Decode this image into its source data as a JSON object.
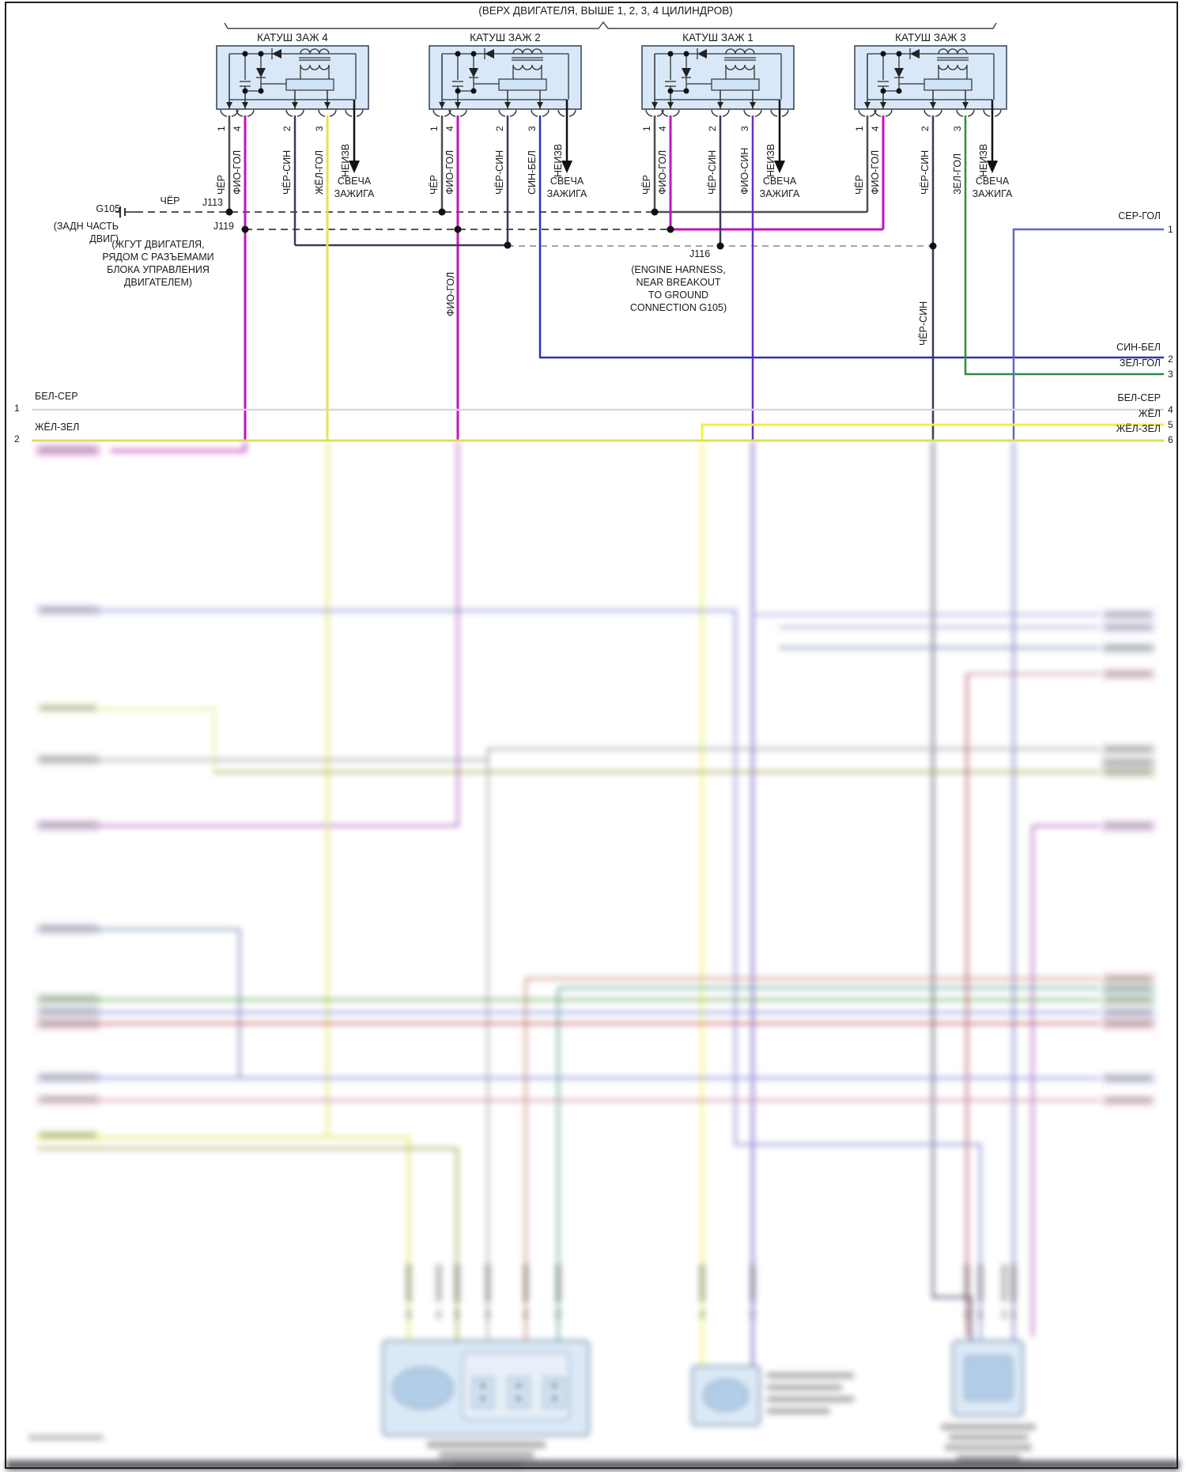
{
  "header": {
    "note": "(ВЕРХ ДВИГАТЕЛЯ, ВЫШЕ 1, 2, 3, 4 ЦИЛИНДРОВ)"
  },
  "coils": [
    {
      "title": "КАТУШ ЗАЖ 4",
      "pins": [
        {
          "num": "1",
          "label": "ЧЁР"
        },
        {
          "num": "4",
          "label": "ФИО-ГОЛ"
        },
        {
          "num": "2",
          "label": "ЧЁР-СИН"
        },
        {
          "num": "3",
          "label": "ЖЁЛ-ГОЛ"
        }
      ],
      "unknown": "НЕИЗВ",
      "spark": [
        "СВЕЧА",
        "ЗАЖИГА"
      ]
    },
    {
      "title": "КАТУШ ЗАЖ 2",
      "pins": [
        {
          "num": "1",
          "label": "ЧЁР"
        },
        {
          "num": "4",
          "label": "ФИО-ГОЛ"
        },
        {
          "num": "2",
          "label": "ЧЁР-СИН"
        },
        {
          "num": "3",
          "label": "СИН-БЕЛ"
        }
      ],
      "unknown": "НЕИЗВ",
      "spark": [
        "СВЕЧА",
        "ЗАЖИГА"
      ]
    },
    {
      "title": "КАТУШ ЗАЖ 1",
      "pins": [
        {
          "num": "1",
          "label": "ЧЁР"
        },
        {
          "num": "4",
          "label": "ФИО-ГОЛ"
        },
        {
          "num": "2",
          "label": "ЧЁР-СИН"
        },
        {
          "num": "3",
          "label": "ФИО-СИН"
        }
      ],
      "unknown": "НЕИЗВ",
      "spark": [
        "СВЕЧА",
        "ЗАЖИГА"
      ]
    },
    {
      "title": "КАТУШ ЗАЖ 3",
      "pins": [
        {
          "num": "1",
          "label": "ЧЁР"
        },
        {
          "num": "4",
          "label": "ФИО-ГОЛ"
        },
        {
          "num": "2",
          "label": "ЧЁР-СИН"
        },
        {
          "num": "3",
          "label": "ЗЕЛ-ГОЛ"
        }
      ],
      "unknown": "НЕИЗВ",
      "spark": [
        "СВЕЧА",
        "ЗАЖИГА"
      ]
    }
  ],
  "ground": {
    "id": "G105",
    "wire": "ЧЁР",
    "note": [
      "(ЗАДН ЧАСТЬ",
      "ДВИГ)"
    ]
  },
  "j113": {
    "id": "J113"
  },
  "j119": {
    "id": "J119",
    "note": [
      "(ЖГУТ ДВИГАТЕЛЯ,",
      "РЯДОМ С РАЗЪЕМАМИ",
      "БЛОКА УПРАВЛЕНИЯ",
      "ДВИГАТЕЛЕМ)"
    ]
  },
  "j116": {
    "id": "J116",
    "note": [
      "(ENGINE HARNESS,",
      "NEAR BREAKOUT",
      "TO GROUND",
      "CONNECTION G105)"
    ]
  },
  "wire_tags": {
    "fio_gol": "ФИО-ГОЛ",
    "chyor_sin": "ЧЁР-СИН"
  },
  "left_rows": [
    {
      "num": "1",
      "label": "БЕЛ-СЕР"
    },
    {
      "num": "2",
      "label": "ЖЁЛ-ЗЕЛ"
    }
  ],
  "right_rows": [
    {
      "num": "1",
      "label": "СЕР-ГОЛ"
    },
    {
      "num": "2",
      "label": "СИН-БЕЛ"
    },
    {
      "num": "3",
      "label": "ЗЕЛ-ГОЛ"
    },
    {
      "num": "4",
      "label": "БЕЛ-СЕР"
    },
    {
      "num": "5",
      "label": "ЖЁЛ"
    },
    {
      "num": "6",
      "label": "ЖЁЛ-ЗЕЛ"
    }
  ],
  "colors": {
    "ЧЁР": "#4f4f4f",
    "ФИО-ГОЛ": "#c213c2",
    "ЧЁР-СИН": "#3a3a5e",
    "ЖЁЛ-ГОЛ": "#e3e352",
    "СИН-БЕЛ": "#2b35ad",
    "ФИО-СИН": "#6230c8",
    "ЗЕЛ-ГОЛ": "#2e8f3c",
    "СЕР-ГОЛ": "#5f6ab8",
    "БЕЛ-СЕР": "#d8d8d8",
    "ЖЁЛ": "#f1ef48",
    "ЖЁЛ-ЗЕЛ": "#dce156",
    "coil_box_fill": "#d8e8f8",
    "coil_module_fill": "#cfe3f6"
  }
}
